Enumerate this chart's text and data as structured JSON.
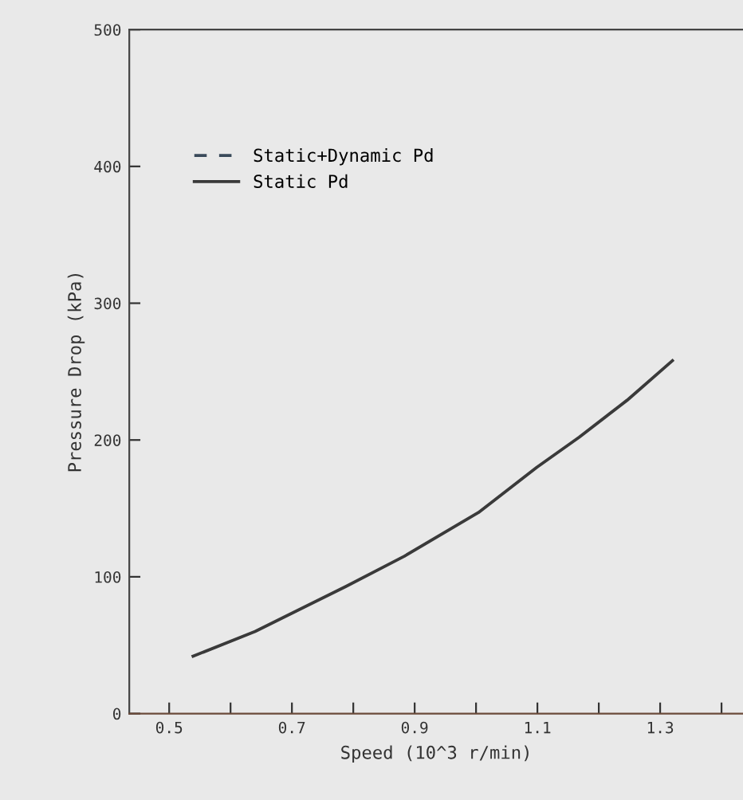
{
  "chart_data": {
    "type": "line",
    "xlabel": "Speed (10^3 r/min)",
    "ylabel": "Pressure Drop (kPa)",
    "x": [
      0.539,
      0.64,
      0.788,
      0.883,
      1.004,
      1.099,
      1.168,
      1.246,
      1.32
    ],
    "series": [
      {
        "name": "Static+Dynamic Pd",
        "color": "#3a4a5a",
        "line_style": "dashed",
        "values": [
          null,
          null,
          null,
          null,
          null,
          null,
          null,
          null,
          null
        ]
      },
      {
        "name": "Static Pd",
        "color": "#3a3a3a",
        "line_style": "solid",
        "values": [
          42,
          60,
          93,
          115,
          147,
          180,
          202,
          229,
          258
        ]
      }
    ],
    "xlim": [
      0.435,
      1.435
    ],
    "xticks": [
      0.5,
      {
        "value": 0.6,
        "label": null
      },
      0.7,
      {
        "value": 0.8,
        "label": null
      },
      0.9,
      {
        "value": 1.0,
        "label": null
      },
      1.1,
      {
        "value": 1.2,
        "label": null
      },
      1.3,
      {
        "value": 1.4,
        "label": null
      }
    ],
    "ylim": [
      0,
      500
    ],
    "yticks": [
      0,
      100,
      200,
      300,
      400,
      500
    ],
    "grid": false,
    "legend": "top left",
    "marker": "none"
  }
}
